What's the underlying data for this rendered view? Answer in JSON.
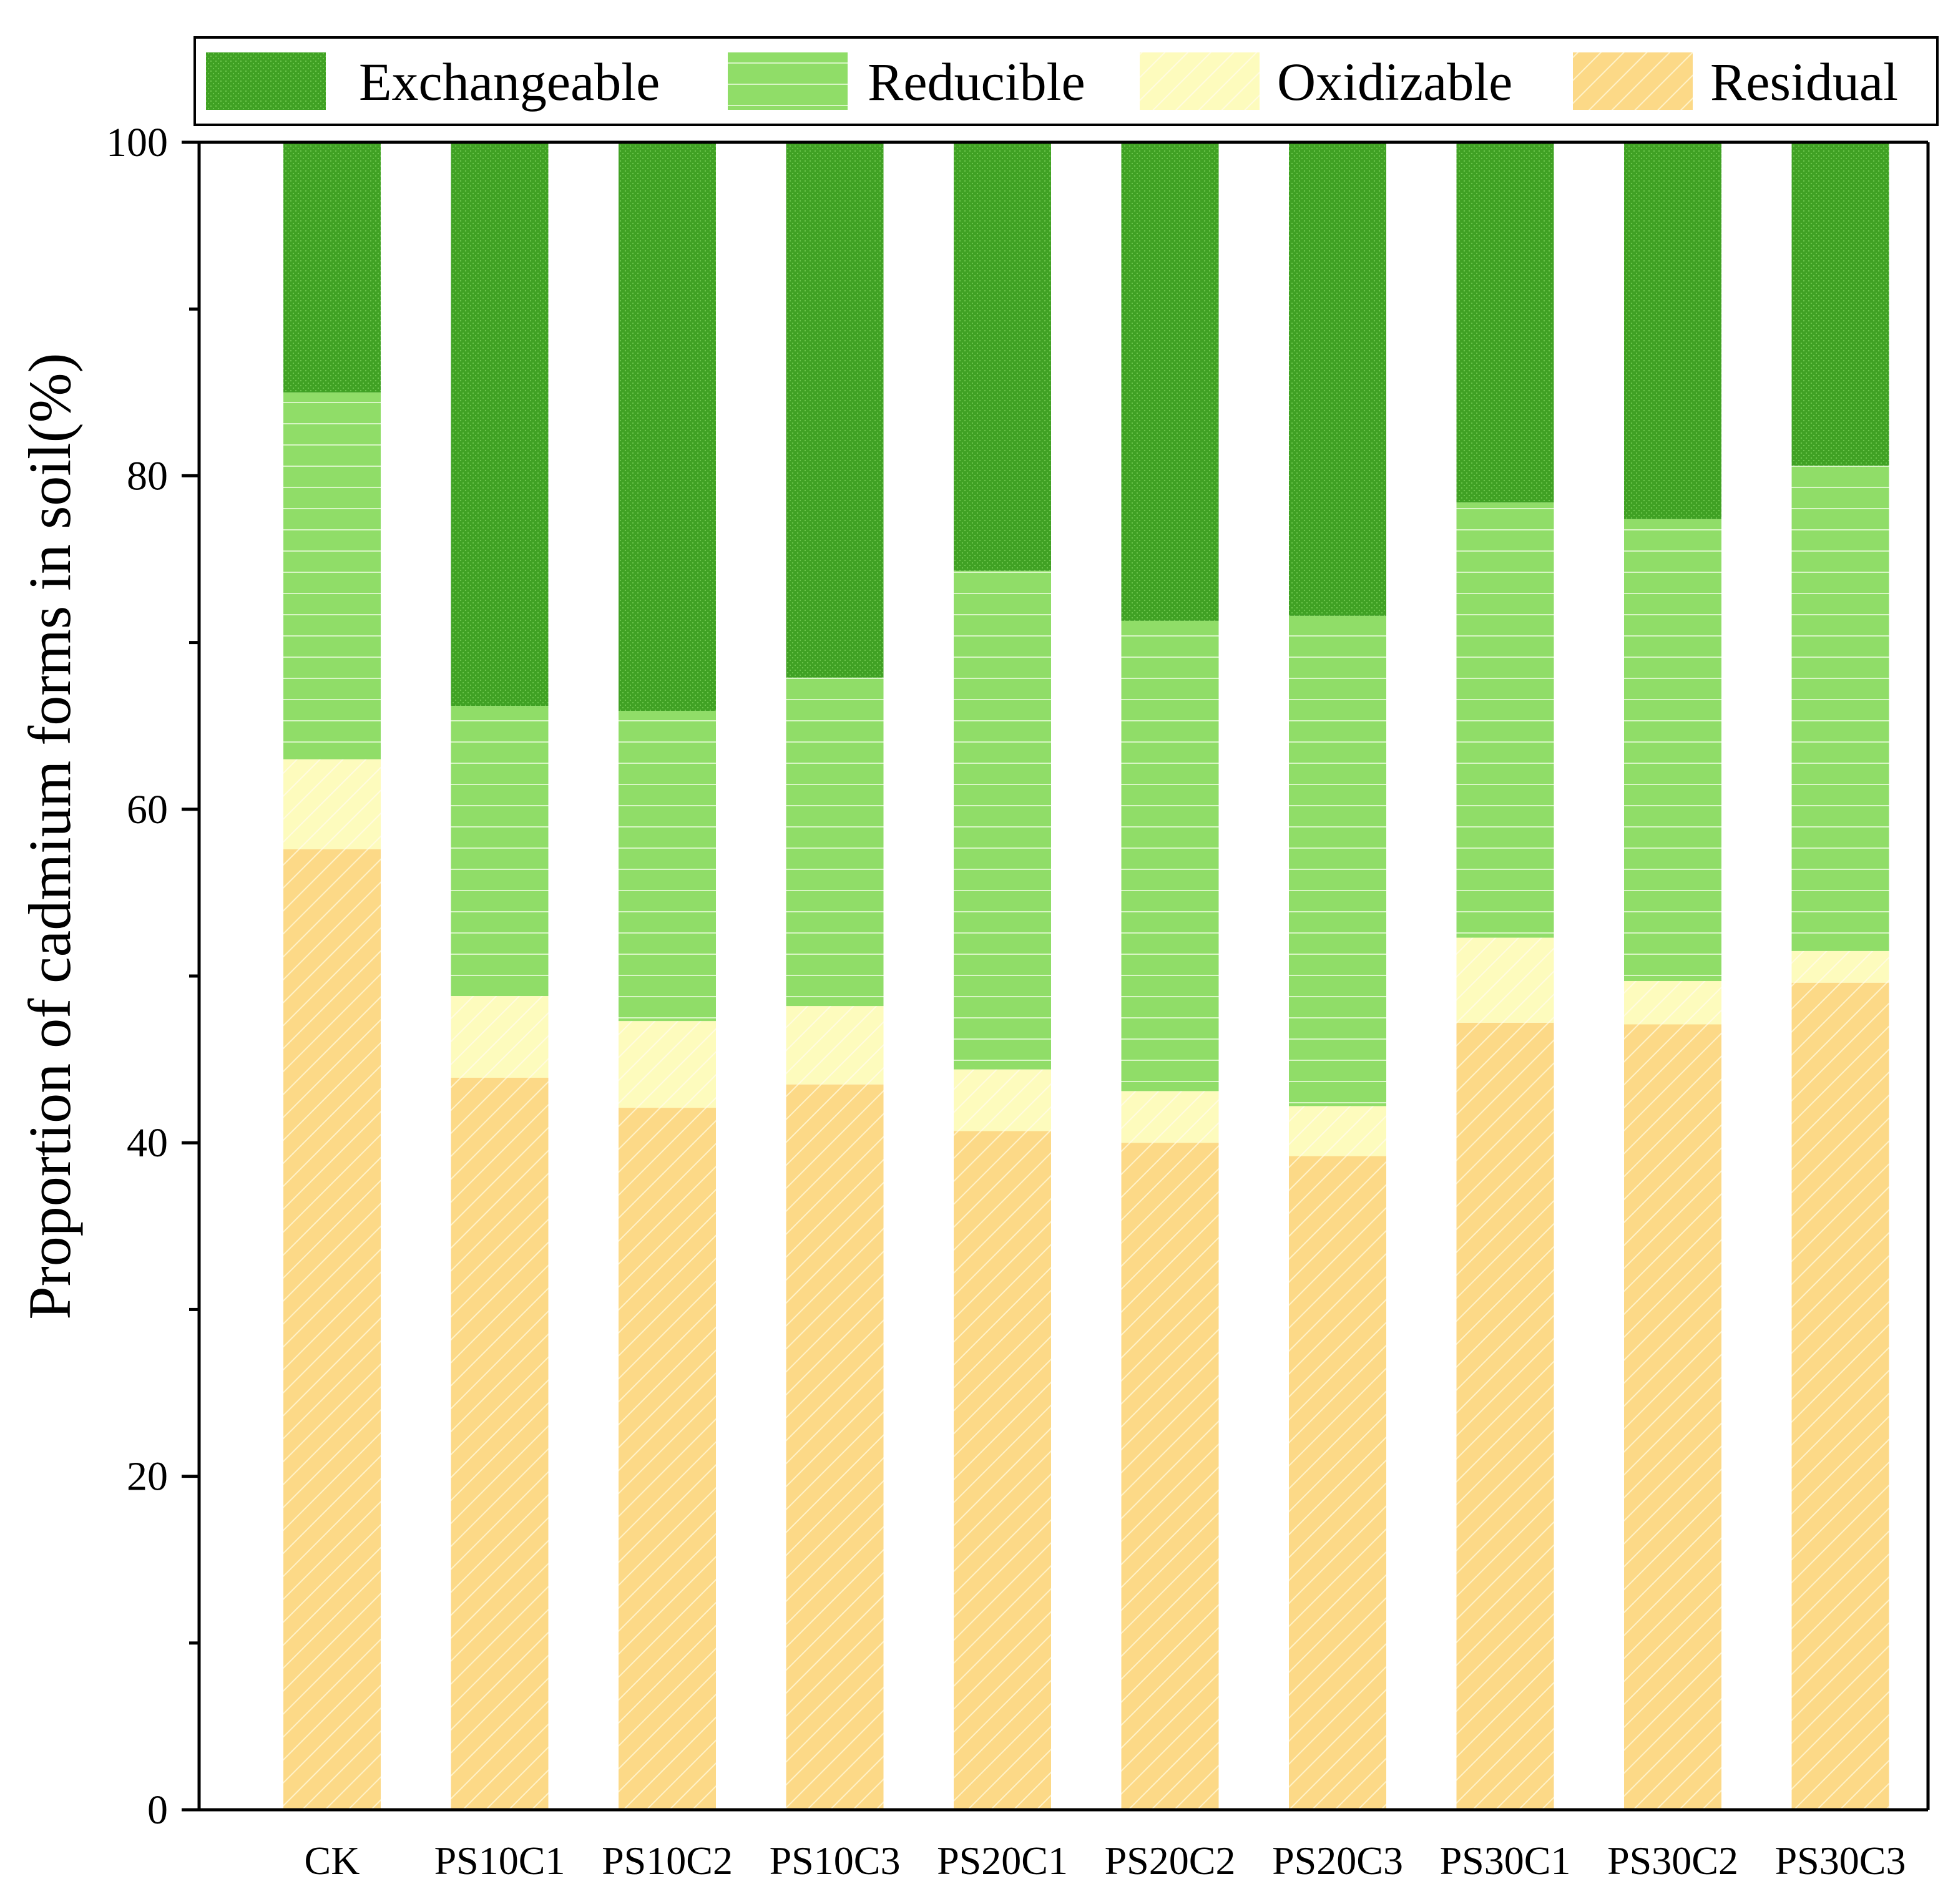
{
  "chart_data": {
    "type": "bar",
    "stacked": true,
    "title": "",
    "xlabel": "",
    "ylabel": "Proportion of cadmium forms in soil(%)",
    "ylim": [
      0,
      100
    ],
    "yticks": [
      0,
      20,
      40,
      60,
      80,
      100
    ],
    "ytick_labels": [
      "0",
      "20",
      "40",
      "60",
      "80",
      "100"
    ],
    "legend_position": "top",
    "grid": false,
    "categories": [
      "CK",
      "PS10C1",
      "PS10C2",
      "PS10C3",
      "PS20C1",
      "PS20C2",
      "PS20C3",
      "PS30C1",
      "PS30C2",
      "PS30C3"
    ],
    "series": [
      {
        "name": "Residual",
        "color": "#fcd987",
        "pattern": "diagonal-hatch",
        "values": [
          57.6,
          43.9,
          42.1,
          43.5,
          40.7,
          40.0,
          39.2,
          47.2,
          47.1,
          49.6
        ]
      },
      {
        "name": "Oxidizable",
        "color": "#fdfbbd",
        "pattern": "diagonal-hatch-light",
        "values": [
          5.4,
          4.9,
          5.2,
          4.7,
          3.7,
          3.1,
          3.0,
          5.1,
          2.6,
          1.9
        ]
      },
      {
        "name": "Reducible",
        "color": "#90dd68",
        "pattern": "horizontal-lines",
        "values": [
          22.0,
          17.4,
          18.6,
          19.7,
          29.9,
          28.2,
          29.4,
          26.1,
          27.7,
          29.1
        ]
      },
      {
        "name": "Exchangeable",
        "color": "#40a124",
        "pattern": "dots",
        "values": [
          15.0,
          33.8,
          34.1,
          32.1,
          25.7,
          28.7,
          28.4,
          21.6,
          22.6,
          19.4
        ]
      }
    ],
    "legend_order": [
      "Exchangeable",
      "Reducible",
      "Oxidizable",
      "Residual"
    ]
  }
}
